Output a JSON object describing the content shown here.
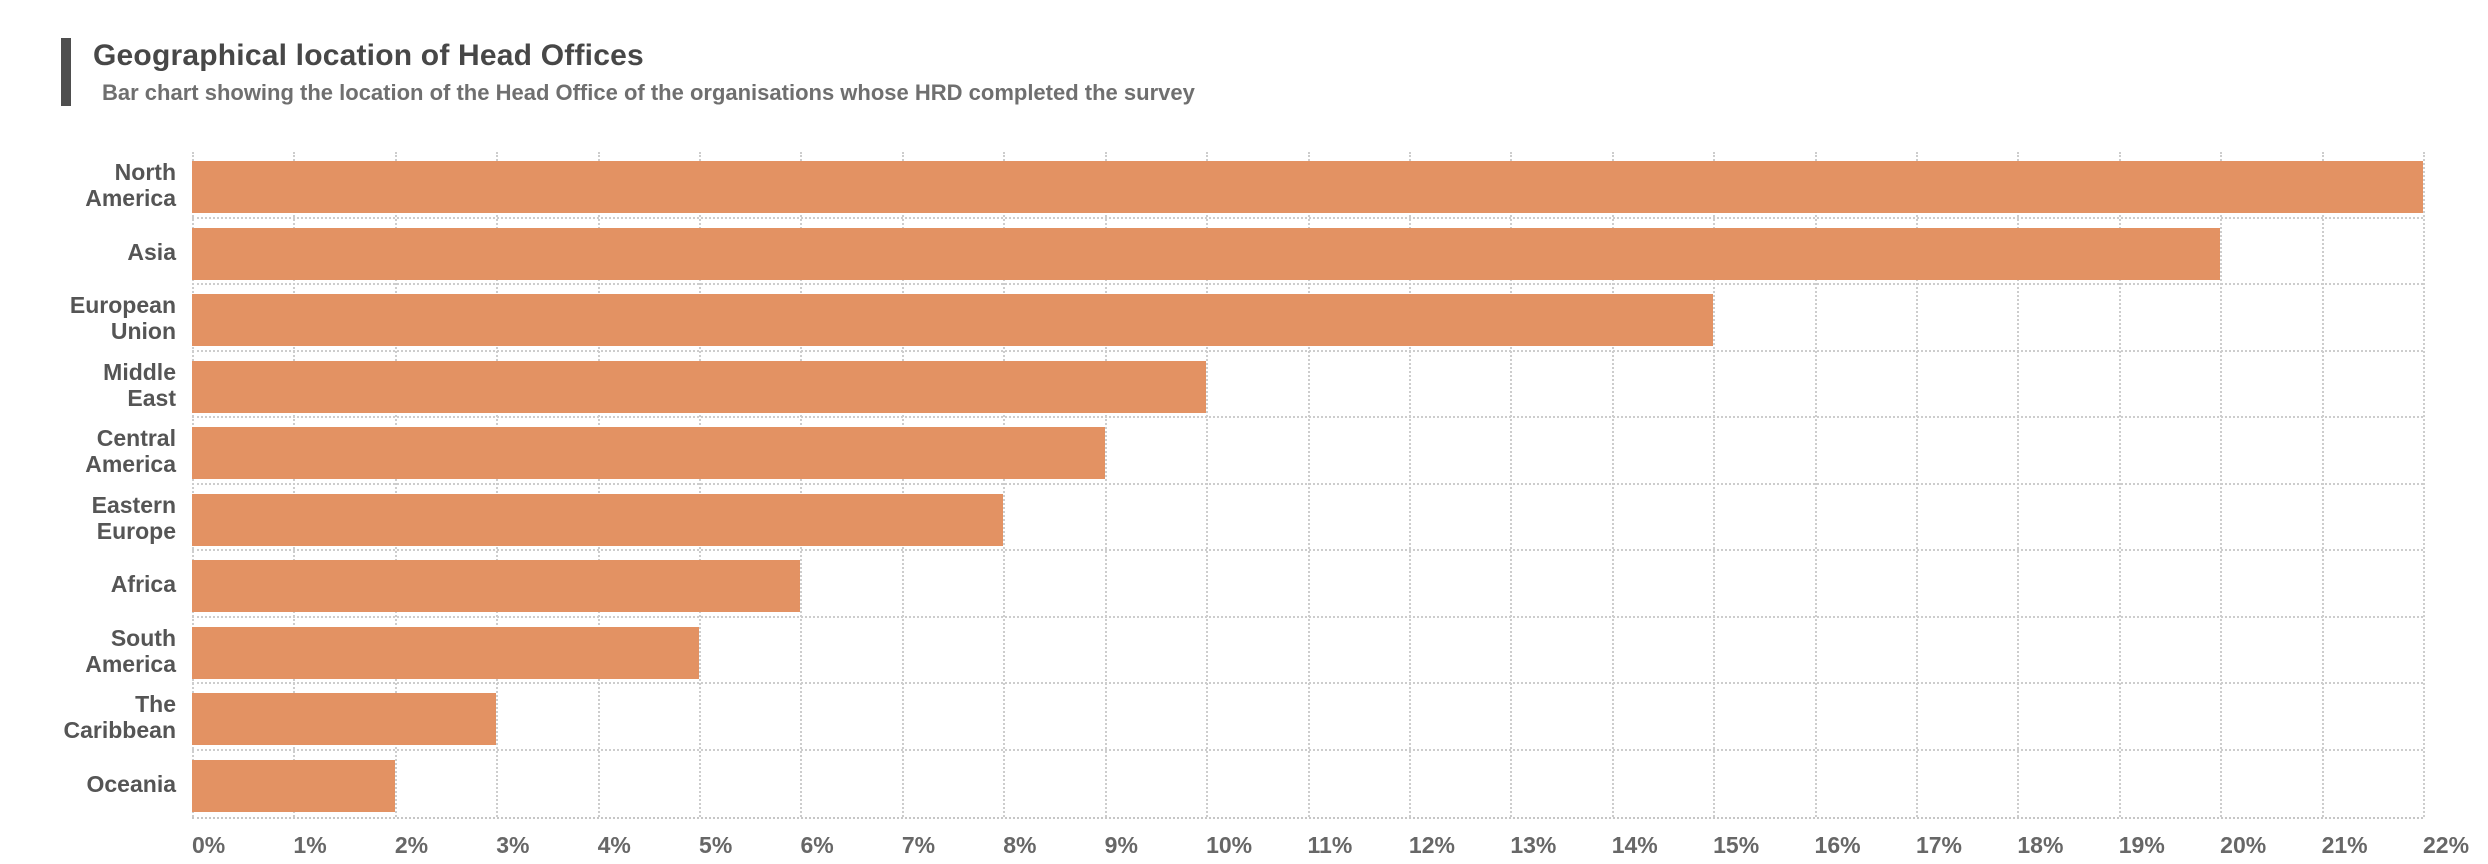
{
  "header": {
    "title": "Geographical location of Head Offices",
    "subtitle": "Bar chart showing the location of the Head Office of the organisations whose HRD completed the survey"
  },
  "chart_data": {
    "type": "bar",
    "orientation": "horizontal",
    "title": "Geographical location of Head Offices",
    "subtitle": "Bar chart showing the location of the Head Office of the organisations whose HRD completed the survey",
    "categories": [
      "North America",
      "Asia",
      "European Union",
      "Middle East",
      "Central America",
      "Eastern Europe",
      "Africa",
      "South America",
      "The Caribbean",
      "Oceania"
    ],
    "values": [
      22,
      20,
      15,
      10,
      9,
      8,
      6,
      5,
      3,
      2
    ],
    "unit": "%",
    "xlabel": "",
    "ylabel": "",
    "xlim": [
      0,
      22
    ],
    "tick_step": 1,
    "x_ticks": [
      "0%",
      "1%",
      "2%",
      "3%",
      "4%",
      "5%",
      "6%",
      "7%",
      "8%",
      "9%",
      "10%",
      "11%",
      "12%",
      "13%",
      "14%",
      "15%",
      "16%",
      "17%",
      "18%",
      "19%",
      "20%",
      "21%",
      "22%"
    ],
    "grid": "dotted-vertical-and-row-separators",
    "legend": "none",
    "bar_color": "#e39263"
  },
  "colors": {
    "bar": "#e39263",
    "accent_bar": "#4e4e4e",
    "title": "#474747",
    "subtitle": "#6f6f6f",
    "category_label": "#555555",
    "axis_label": "#676767",
    "gridline": "#cdcdcd",
    "background": "#ffffff"
  }
}
